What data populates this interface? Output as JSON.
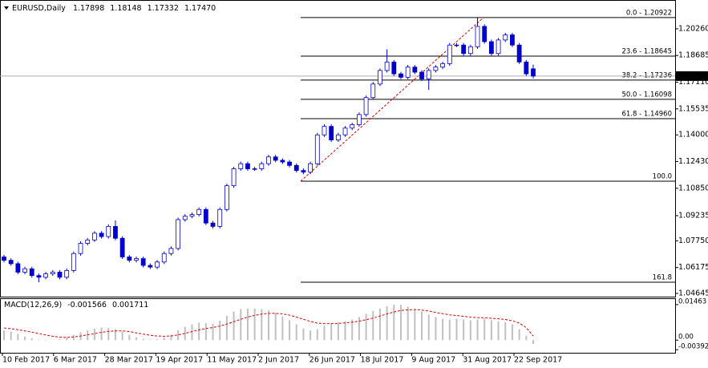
{
  "chart_data": [
    {
      "type": "candlestick",
      "symbol": "EURUSD,Daily",
      "close_label": "1.17470",
      "wick_color": "#0000cd",
      "bull_fill": "#ffffff",
      "bear_fill": "#0000cd",
      "bid_line_color": "#b0b0b0",
      "trend_color": "#e00000",
      "x_labels": [
        "10 Feb 2017",
        "6 Mar 2017",
        "28 Mar 2017",
        "19 Apr 2017",
        "11 May 2017",
        "2 Jun 2017",
        "26 Jun 2017",
        "18 Jul 2017",
        "9 Aug 2017",
        "31 Aug 2017",
        "22 Sep 2017"
      ],
      "open": [
        1.068,
        1.066,
        1.064,
        1.059,
        1.061,
        1.057,
        1.056,
        1.058,
        1.059,
        1.056,
        1.06,
        1.07,
        1.076,
        1.078,
        1.082,
        1.08,
        1.086,
        1.079,
        1.068,
        1.066,
        1.067,
        1.063,
        1.062,
        1.065,
        1.07,
        1.073,
        1.09,
        1.092,
        1.093,
        1.096,
        1.088,
        1.086,
        1.096,
        1.11,
        1.12,
        1.123,
        1.12,
        1.12,
        1.123,
        1.127,
        1.125,
        1.124,
        1.122,
        1.119,
        1.118,
        1.123,
        1.14,
        1.145,
        1.137,
        1.14,
        1.144,
        1.146,
        1.152,
        1.162,
        1.17,
        1.178,
        1.183,
        1.176,
        1.174,
        1.18,
        1.177,
        1.173,
        1.178,
        1.18,
        1.182,
        1.193,
        1.193,
        1.188,
        1.192,
        1.204,
        1.195,
        1.188,
        1.196,
        1.199,
        1.193,
        1.183,
        1.17898
      ],
      "high": [
        1.0692,
        1.0672,
        1.0652,
        1.0622,
        1.0622,
        1.0582,
        1.0592,
        1.0602,
        1.0602,
        1.0612,
        1.0712,
        1.0772,
        1.0792,
        1.0832,
        1.0832,
        1.0872,
        1.0895,
        1.0802,
        1.0692,
        1.0682,
        1.0682,
        1.0642,
        1.0662,
        1.0712,
        1.0742,
        1.0912,
        1.0932,
        1.0942,
        1.0972,
        1.0972,
        1.0892,
        1.0972,
        1.1112,
        1.1212,
        1.1242,
        1.1242,
        1.1212,
        1.1242,
        1.1282,
        1.1282,
        1.1262,
        1.1252,
        1.1232,
        1.1202,
        1.1242,
        1.1412,
        1.1462,
        1.1462,
        1.1412,
        1.1452,
        1.1472,
        1.1532,
        1.1632,
        1.1712,
        1.1792,
        1.1905,
        1.1842,
        1.1772,
        1.1812,
        1.1812,
        1.1782,
        1.1792,
        1.1812,
        1.1832,
        1.1942,
        1.1942,
        1.1942,
        1.1932,
        1.2092,
        1.2052,
        1.1962,
        1.1972,
        1.2002,
        1.2002,
        1.1942,
        1.1842,
        1.18148
      ],
      "low": [
        1.0648,
        1.0628,
        1.0578,
        1.0578,
        1.0558,
        1.053,
        1.0548,
        1.0568,
        1.0548,
        1.0548,
        1.0588,
        1.0688,
        1.0748,
        1.0768,
        1.0788,
        1.0788,
        1.0778,
        1.0668,
        1.0648,
        1.0648,
        1.0618,
        1.0608,
        1.0608,
        1.0638,
        1.0688,
        1.0718,
        1.0888,
        1.0908,
        1.0918,
        1.0868,
        1.0848,
        1.0848,
        1.0948,
        1.1088,
        1.1188,
        1.1188,
        1.1188,
        1.1188,
        1.1218,
        1.1238,
        1.1228,
        1.1208,
        1.1178,
        1.1168,
        1.1168,
        1.1218,
        1.1388,
        1.1358,
        1.1358,
        1.1388,
        1.1428,
        1.1448,
        1.1508,
        1.1608,
        1.1688,
        1.1768,
        1.1748,
        1.1728,
        1.1728,
        1.1758,
        1.1718,
        1.1665,
        1.1768,
        1.1788,
        1.1808,
        1.1918,
        1.1868,
        1.1868,
        1.1908,
        1.1938,
        1.1868,
        1.1868,
        1.1948,
        1.1918,
        1.1818,
        1.1748,
        1.17332
      ],
      "close": [
        1.066,
        1.064,
        1.059,
        1.061,
        1.057,
        1.056,
        1.058,
        1.059,
        1.056,
        1.06,
        1.07,
        1.076,
        1.078,
        1.082,
        1.08,
        1.086,
        1.079,
        1.068,
        1.066,
        1.067,
        1.063,
        1.062,
        1.065,
        1.07,
        1.073,
        1.09,
        1.092,
        1.093,
        1.096,
        1.088,
        1.086,
        1.096,
        1.11,
        1.12,
        1.123,
        1.12,
        1.12,
        1.123,
        1.127,
        1.125,
        1.124,
        1.122,
        1.119,
        1.118,
        1.123,
        1.14,
        1.145,
        1.137,
        1.14,
        1.144,
        1.146,
        1.152,
        1.162,
        1.17,
        1.178,
        1.183,
        1.176,
        1.174,
        1.18,
        1.177,
        1.173,
        1.178,
        1.18,
        1.182,
        1.193,
        1.193,
        1.188,
        1.192,
        1.204,
        1.195,
        1.188,
        1.196,
        1.199,
        1.193,
        1.183,
        1.176,
        1.1747
      ],
      "ylim": [
        1.04456,
        1.21911
      ],
      "yticks": [
        {
          "value": 1.2026,
          "label": "1.20260"
        },
        {
          "value": 1.18685,
          "label": "1.18685"
        },
        {
          "value": 1.1711,
          "label": "1.17110"
        },
        {
          "value": 1.15535,
          "label": "1.15535"
        },
        {
          "value": 1.14,
          "label": "1.14000"
        },
        {
          "value": 1.1243,
          "label": "1.12430"
        },
        {
          "value": 1.1085,
          "label": "1.10850"
        },
        {
          "value": 1.09235,
          "label": "1.09235"
        },
        {
          "value": 1.0775,
          "label": "1.07750"
        },
        {
          "value": 1.06175,
          "label": "1.06175"
        },
        {
          "value": 1.04645,
          "label": "1.04645"
        }
      ],
      "fib_levels": [
        {
          "value": 1.20922,
          "label": "0.0 - 1.20922"
        },
        {
          "value": 1.18645,
          "label": "23.6 - 1.18645"
        },
        {
          "value": 1.17236,
          "label": "38.2 - 1.17236"
        },
        {
          "value": 1.16098,
          "label": "50.0 - 1.16098"
        },
        {
          "value": 1.1496,
          "label": "61.8 - 1.14960"
        },
        {
          "value": 1.1127,
          "label": "100.0"
        },
        {
          "value": 1.0531,
          "label": "161.8"
        }
      ]
    },
    {
      "type": "macd",
      "title": "MACD(12,26,9)",
      "hist_color": "#c0c0c0",
      "signal_color": "#e00000",
      "histogram": [
        0.004,
        0.0035,
        0.0025,
        0.0015,
        0.0008,
        0.0002,
        -0.0002,
        0.0,
        0.0004,
        0.0012,
        0.0022,
        0.0032,
        0.004,
        0.0047,
        0.0052,
        0.005,
        0.0045,
        0.0035,
        0.0022,
        0.0012,
        0.0005,
        0.0002,
        0.0004,
        0.0012,
        0.0022,
        0.004,
        0.0055,
        0.0065,
        0.0072,
        0.007,
        0.0068,
        0.008,
        0.01,
        0.0118,
        0.0128,
        0.013,
        0.013,
        0.0128,
        0.0122,
        0.0112,
        0.0098,
        0.0082,
        0.0065,
        0.0048,
        0.004,
        0.0045,
        0.006,
        0.0068,
        0.0072,
        0.0078,
        0.0085,
        0.0095,
        0.0108,
        0.012,
        0.013,
        0.014,
        0.0146,
        0.0145,
        0.0138,
        0.0128,
        0.0118,
        0.0105,
        0.0095,
        0.0088,
        0.0085,
        0.0088,
        0.0085,
        0.0082,
        0.0085,
        0.0088,
        0.0082,
        0.0078,
        0.0074,
        0.0065,
        0.0045,
        0.0018,
        -0.001566
      ],
      "signal": [
        0.005,
        0.0047,
        0.0043,
        0.0038,
        0.0033,
        0.0027,
        0.0021,
        0.0016,
        0.0012,
        0.0011,
        0.0013,
        0.0017,
        0.0022,
        0.0027,
        0.0032,
        0.0036,
        0.0038,
        0.0038,
        0.0035,
        0.003,
        0.0025,
        0.002,
        0.0017,
        0.0016,
        0.0017,
        0.0022,
        0.0028,
        0.0035,
        0.0042,
        0.0048,
        0.0052,
        0.0058,
        0.0066,
        0.0076,
        0.0086,
        0.0095,
        0.0102,
        0.0107,
        0.011,
        0.011,
        0.0108,
        0.0103,
        0.0095,
        0.0086,
        0.0077,
        0.007,
        0.0068,
        0.0068,
        0.0069,
        0.0071,
        0.0074,
        0.0078,
        0.0084,
        0.0091,
        0.0099,
        0.0108,
        0.0116,
        0.0122,
        0.0125,
        0.0126,
        0.0124,
        0.012,
        0.0114,
        0.0109,
        0.0104,
        0.0101,
        0.0098,
        0.0095,
        0.0093,
        0.0092,
        0.009,
        0.0088,
        0.0085,
        0.008,
        0.007,
        0.0052,
        0.001711
      ],
      "ylim": [
        -0.0052,
        0.01691
      ],
      "yticks": [
        {
          "value": 0.01463,
          "label": "0.01463"
        },
        {
          "value": 0,
          "label": "0.00"
        },
        {
          "value": -0.003929,
          "label": "-0.003929"
        }
      ]
    }
  ]
}
